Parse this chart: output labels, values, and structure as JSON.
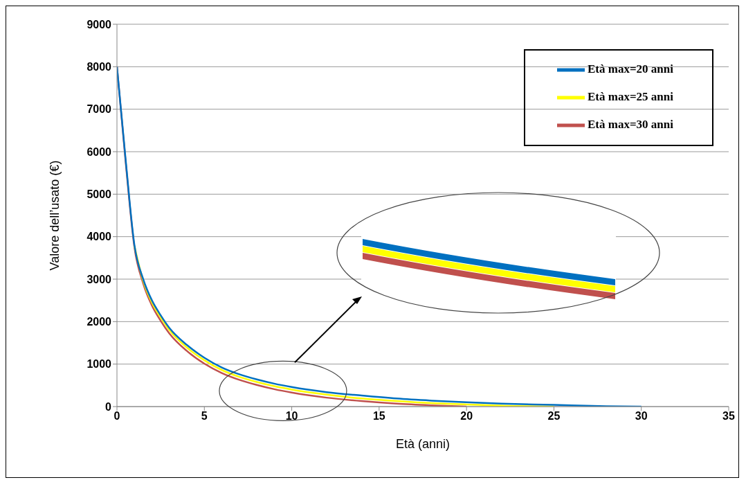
{
  "chart_data": {
    "type": "line",
    "xlabel": "Età (anni)",
    "ylabel": "Valore dell’usato (€)",
    "xlim": [
      0,
      35
    ],
    "ylim": [
      0,
      9000
    ],
    "xticks": [
      0,
      5,
      10,
      15,
      20,
      25,
      30,
      35
    ],
    "yticks": [
      0,
      1000,
      2000,
      3000,
      4000,
      5000,
      6000,
      7000,
      8000,
      9000
    ],
    "grid": "y",
    "legend": "top right",
    "marker": "none",
    "line_style": "solid",
    "series": [
      {
        "name": "Età max=20 anni",
        "color": "#0070c0",
        "x": [
          0,
          0.5,
          1,
          1.5,
          2,
          2.5,
          3,
          4,
          5,
          6,
          7,
          8,
          9,
          10,
          12,
          14,
          16,
          18,
          20,
          22,
          25,
          28,
          30
        ],
        "values": [
          8000,
          5800,
          3800,
          3000,
          2500,
          2150,
          1850,
          1450,
          1150,
          920,
          760,
          640,
          540,
          460,
          340,
          260,
          190,
          140,
          100,
          70,
          40,
          10,
          0
        ]
      },
      {
        "name": "Età max=25 anni",
        "color": "#ffff00",
        "x": [
          1,
          1.5,
          2,
          2.5,
          3,
          4,
          5,
          6,
          7,
          8,
          9,
          10,
          12,
          14,
          16,
          18,
          20,
          22,
          25
        ],
        "values": [
          3780,
          2960,
          2450,
          2100,
          1800,
          1390,
          1090,
          860,
          700,
          580,
          480,
          400,
          280,
          190,
          130,
          80,
          50,
          20,
          0
        ]
      },
      {
        "name": "Età max=30 anni",
        "color": "#c0504d",
        "x": [
          0,
          0.5,
          1,
          1.5,
          2,
          2.5,
          3,
          4,
          5,
          6,
          7,
          8,
          9,
          10,
          12,
          14,
          16,
          18,
          20
        ],
        "values": [
          8000,
          5750,
          3750,
          2900,
          2380,
          2020,
          1720,
          1310,
          1010,
          790,
          630,
          510,
          410,
          330,
          210,
          130,
          70,
          30,
          0
        ]
      }
    ]
  }
}
